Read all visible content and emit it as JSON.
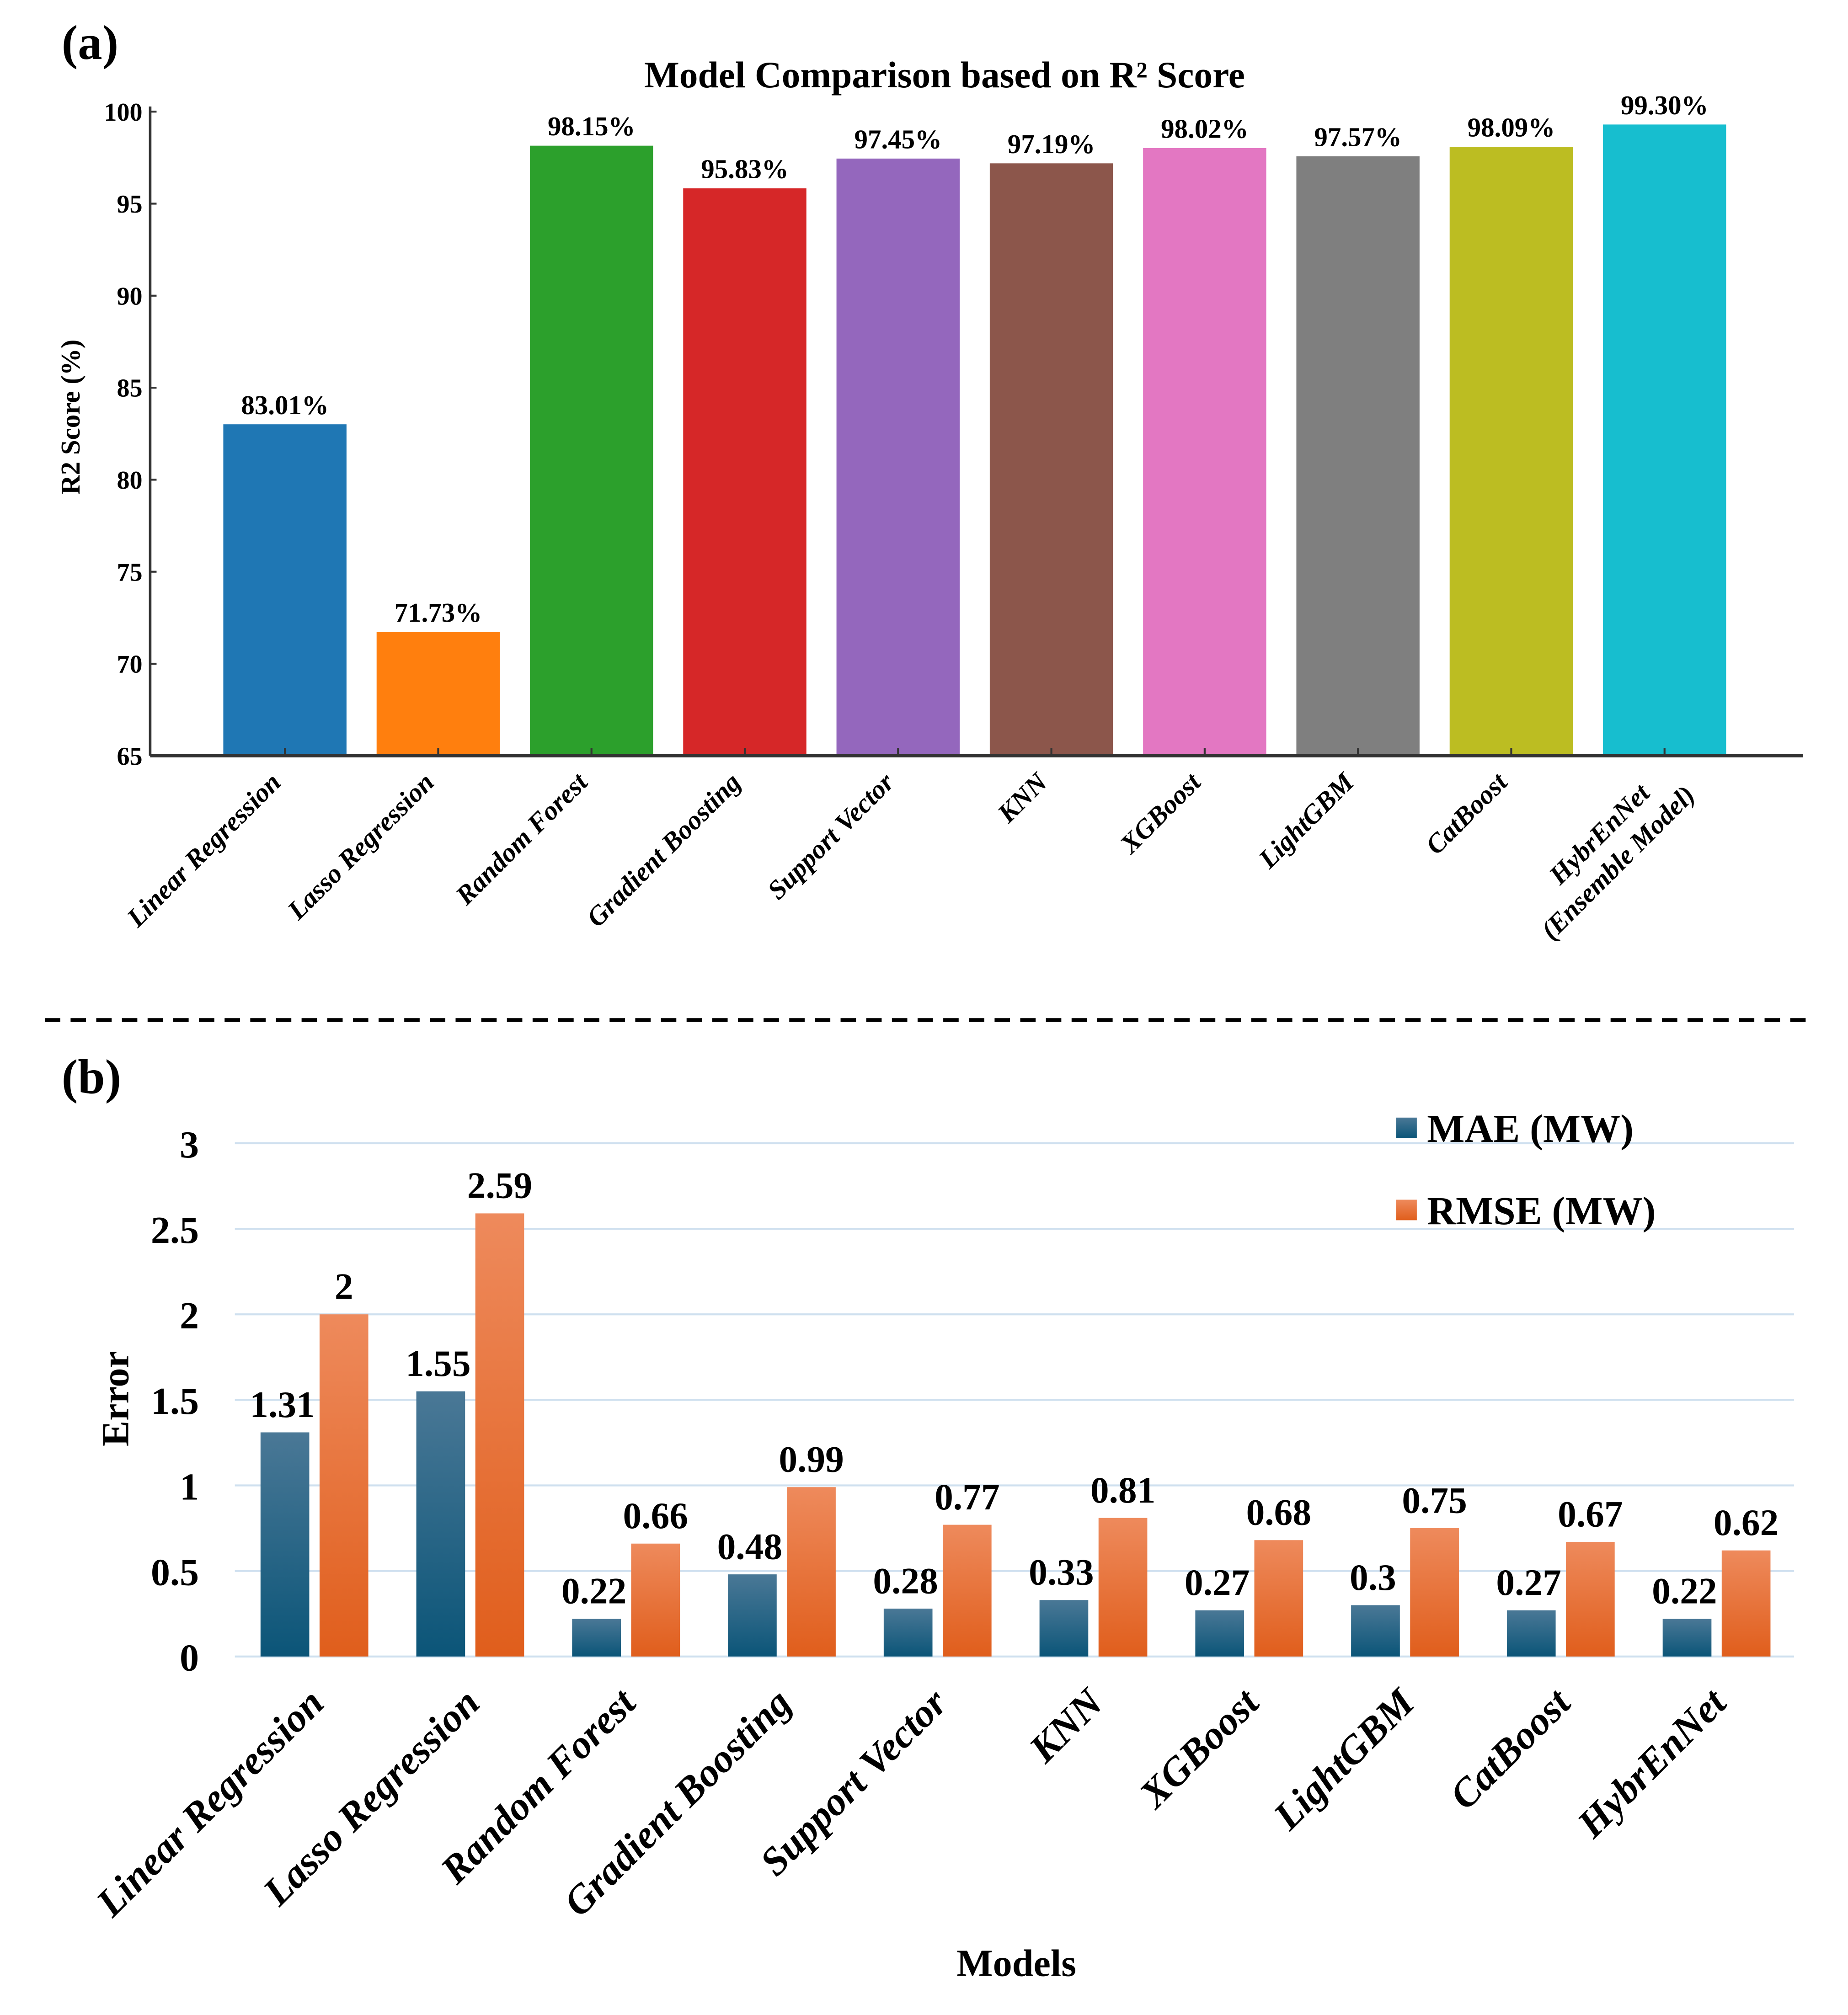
{
  "chart_data": [
    {
      "type": "bar",
      "panel_label": "(a)",
      "title": "Model Comparison based on R² Score",
      "xlabel": "",
      "ylabel": "R2 Score (%)",
      "ylim": [
        65,
        100
      ],
      "yticks": [
        65,
        70,
        75,
        80,
        85,
        90,
        95,
        100
      ],
      "categories": [
        "Linear Regression",
        "Lasso Regression",
        "Random Forest",
        "Gradient Boosting",
        "Support Vector",
        "KNN",
        "XGBoost",
        "LightGBM",
        "CatBoost",
        "HybrEnNet (Ensemble Model)"
      ],
      "category_lines": [
        [
          "Linear Regression"
        ],
        [
          "Lasso Regression"
        ],
        [
          "Random Forest"
        ],
        [
          "Gradient Boosting"
        ],
        [
          "Support Vector"
        ],
        [
          "KNN"
        ],
        [
          "XGBoost"
        ],
        [
          "LightGBM"
        ],
        [
          "CatBoost"
        ],
        [
          "HybrEnNet",
          "(Ensemble Model)"
        ]
      ],
      "values": [
        83.01,
        71.73,
        98.15,
        95.83,
        97.45,
        97.19,
        98.02,
        97.57,
        98.09,
        99.3
      ],
      "data_labels": [
        "83.01%",
        "71.73%",
        "98.15%",
        "95.83%",
        "97.45%",
        "97.19%",
        "98.02%",
        "97.57%",
        "98.09%",
        "99.30%"
      ],
      "colors": [
        "#1f77b4",
        "#ff7f0e",
        "#2ca02c",
        "#d62728",
        "#9467bd",
        "#8c564b",
        "#e377c2",
        "#7f7f7f",
        "#bcbd22",
        "#17becf"
      ],
      "grid": false
    },
    {
      "type": "bar",
      "panel_label": "(b)",
      "title": "",
      "xlabel": "Models",
      "ylabel": "Error",
      "ylim": [
        0,
        3
      ],
      "yticks": [
        0,
        0.5,
        1,
        1.5,
        2,
        2.5,
        3
      ],
      "ytick_labels": [
        "0",
        "0.5",
        "1",
        "1.5",
        "2",
        "2.5",
        "3"
      ],
      "categories": [
        "Linear Regression",
        "Lasso Regression",
        "Random Forest",
        "Gradient Boosting",
        "Support Vector",
        "KNN",
        "XGBoost",
        "LightGBM",
        "CatBoost",
        "HybrEnNet"
      ],
      "series": [
        {
          "name": "MAE (MW)",
          "values": [
            1.31,
            1.55,
            0.22,
            0.48,
            0.28,
            0.33,
            0.27,
            0.3,
            0.27,
            0.22
          ],
          "labels": [
            "1.31",
            "1.55",
            "0.22",
            "0.48",
            "0.28",
            "0.33",
            "0.27",
            "0.3",
            "0.27",
            "0.22"
          ],
          "color_top": "#4a7896",
          "color_bottom": "#0b5578"
        },
        {
          "name": "RMSE (MW)",
          "values": [
            2,
            2.59,
            0.66,
            0.99,
            0.77,
            0.81,
            0.68,
            0.75,
            0.67,
            0.62
          ],
          "labels": [
            "2",
            "2.59",
            "0.66",
            "0.99",
            "0.77",
            "0.81",
            "0.68",
            "0.75",
            "0.67",
            "0.62"
          ],
          "color_top": "#ee8a5c",
          "color_bottom": "#e05e1c"
        }
      ],
      "legend_position": "top-right",
      "grid": true,
      "grid_color": "#cfe0ef"
    }
  ]
}
